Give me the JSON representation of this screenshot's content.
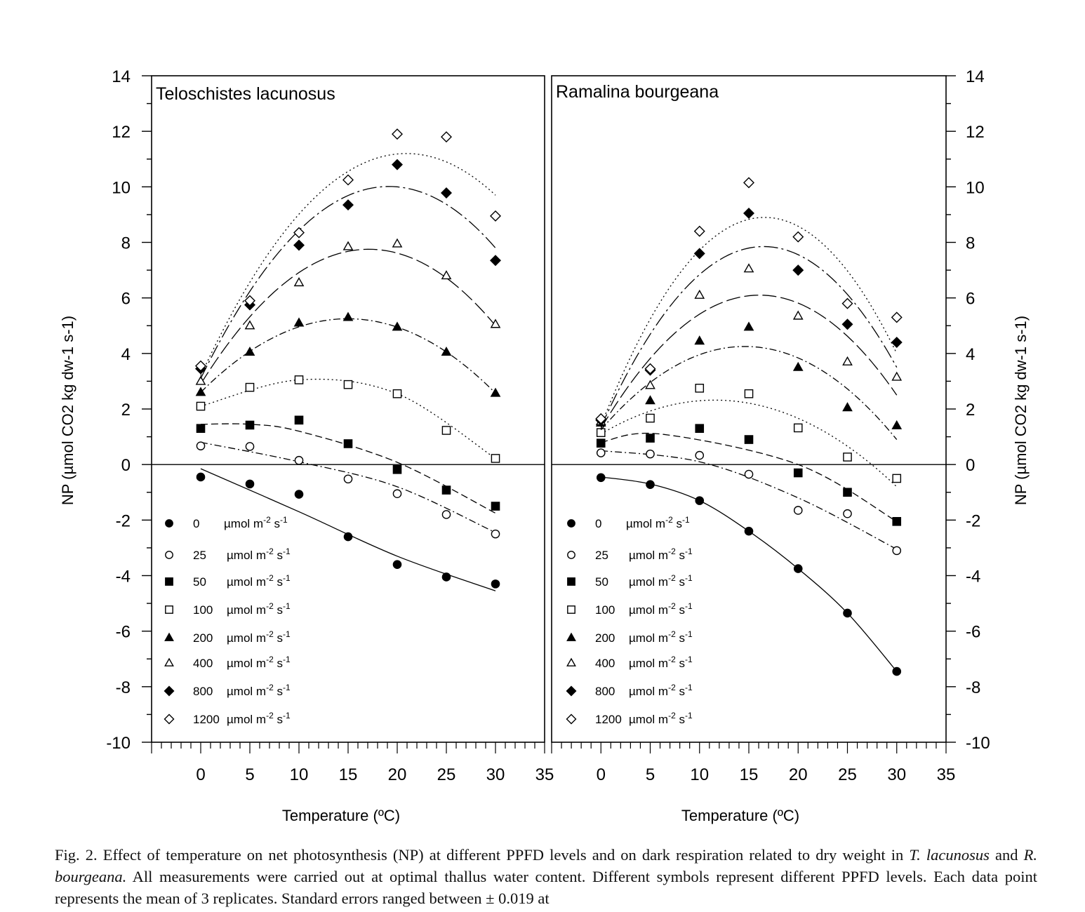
{
  "chart_data": [
    {
      "type": "scatter",
      "title": "Teloschistes lacunosus",
      "xlabel": "Temperature (ºC)",
      "ylabel": "NP (µmol CO2 kg dw-1 s-1)",
      "xlim": [
        -5,
        35
      ],
      "ylim": [
        -10,
        14
      ],
      "x_ticks": [
        "0",
        "5",
        "10",
        "15",
        "20",
        "25",
        "30",
        "35"
      ],
      "y_ticks": [
        "14",
        "12",
        "10",
        "8",
        "6",
        "4",
        "2",
        "0",
        "-2",
        "-4",
        "-6",
        "-8",
        "-10"
      ],
      "legend_position": "bottom-left",
      "series": [
        {
          "name": "0",
          "marker": "filled-circle",
          "line": "solid",
          "x": [
            0,
            5,
            10,
            15,
            20,
            25,
            30
          ],
          "y": [
            -0.45,
            -0.7,
            -1.07,
            -2.6,
            -3.6,
            -4.05,
            -4.3
          ],
          "fit": [
            [
              0,
              -0.15
            ],
            [
              10,
              -1.7
            ],
            [
              20,
              -3.3
            ],
            [
              30,
              -4.55
            ]
          ]
        },
        {
          "name": "25",
          "marker": "open-circle",
          "line": "dashdot",
          "x": [
            0,
            5,
            10,
            15,
            20,
            25,
            30
          ],
          "y": [
            0.67,
            0.65,
            0.15,
            -0.52,
            -1.05,
            -1.8,
            -2.5
          ],
          "fit": [
            [
              0,
              0.8
            ],
            [
              10,
              0.1
            ],
            [
              20,
              -0.8
            ],
            [
              30,
              -2.45
            ]
          ]
        },
        {
          "name": "50",
          "marker": "filled-square",
          "line": "dashed",
          "x": [
            0,
            5,
            10,
            15,
            20,
            25,
            30
          ],
          "y": [
            1.3,
            1.42,
            1.6,
            0.75,
            -0.18,
            -0.92,
            -1.5
          ],
          "fit": [
            [
              0,
              1.45
            ],
            [
              5,
              1.45
            ],
            [
              10,
              1.2
            ],
            [
              20,
              0.08
            ],
            [
              30,
              -1.75
            ]
          ]
        },
        {
          "name": "100",
          "marker": "open-square",
          "line": "dotted",
          "x": [
            0,
            5,
            10,
            15,
            20,
            25,
            30
          ],
          "y": [
            2.1,
            2.78,
            3.05,
            2.88,
            2.55,
            1.23,
            0.22
          ],
          "fit": [
            [
              0,
              2.1
            ],
            [
              10,
              3.05
            ],
            [
              20,
              2.55
            ],
            [
              30,
              0.22
            ]
          ]
        },
        {
          "name": "200",
          "marker": "filled-triangle",
          "line": "dashdot",
          "x": [
            0,
            5,
            10,
            15,
            20,
            25,
            30
          ],
          "y": [
            2.6,
            4.05,
            5.1,
            5.3,
            4.95,
            4.05,
            2.57
          ],
          "fit": [
            [
              0,
              2.6
            ],
            [
              15,
              5.25
            ],
            [
              30,
              2.57
            ]
          ]
        },
        {
          "name": "400",
          "marker": "open-triangle",
          "line": "longdash",
          "x": [
            0,
            5,
            10,
            15,
            20,
            25,
            30
          ],
          "y": [
            3.0,
            5.0,
            6.55,
            7.85,
            7.95,
            6.8,
            5.05
          ],
          "fit": [
            [
              0,
              2.9
            ],
            [
              17.5,
              7.75
            ],
            [
              30,
              5.0
            ]
          ]
        },
        {
          "name": "800",
          "marker": "filled-diamond",
          "line": "longdashdot",
          "x": [
            0,
            5,
            10,
            15,
            20,
            25,
            30
          ],
          "y": [
            3.45,
            5.75,
            7.9,
            9.35,
            10.8,
            9.78,
            7.35
          ],
          "fit": [
            [
              0,
              3.1
            ],
            [
              20,
              10.0
            ],
            [
              30,
              7.8
            ]
          ]
        },
        {
          "name": "1200",
          "marker": "open-diamond",
          "line": "dotted",
          "x": [
            0,
            5,
            10,
            15,
            20,
            25,
            30
          ],
          "y": [
            3.55,
            5.9,
            8.35,
            10.25,
            11.9,
            11.8,
            8.95
          ],
          "fit": [
            [
              0,
              3.2
            ],
            [
              21,
              11.2
            ],
            [
              30,
              9.7
            ]
          ]
        }
      ]
    },
    {
      "type": "scatter",
      "title": "Ramalina bourgeana",
      "xlabel": "Temperature (ºC)",
      "ylabel": "NP (µmol CO2 kg dw-1 s-1)",
      "xlim": [
        -5,
        35
      ],
      "ylim": [
        -10,
        14
      ],
      "x_ticks": [
        "0",
        "5",
        "10",
        "15",
        "20",
        "25",
        "30",
        "35"
      ],
      "y_ticks": [
        "14",
        "12",
        "10",
        "8",
        "6",
        "4",
        "2",
        "0",
        "-2",
        "-4",
        "-6",
        "-8",
        "-10"
      ],
      "legend_position": "bottom-left",
      "series": [
        {
          "name": "0",
          "marker": "filled-circle",
          "line": "solid",
          "x": [
            0,
            5,
            10,
            15,
            20,
            25,
            30
          ],
          "y": [
            -0.47,
            -0.72,
            -1.3,
            -2.4,
            -3.75,
            -5.35,
            -7.45
          ],
          "fit": [
            [
              0,
              -0.45
            ],
            [
              5,
              -0.7
            ],
            [
              10,
              -1.3
            ],
            [
              15,
              -2.4
            ],
            [
              20,
              -3.75
            ],
            [
              25,
              -5.35
            ],
            [
              30,
              -7.45
            ]
          ]
        },
        {
          "name": "25",
          "marker": "open-circle",
          "line": "dashdot",
          "x": [
            0,
            5,
            10,
            15,
            20,
            25,
            30
          ],
          "y": [
            0.42,
            0.38,
            0.33,
            -0.35,
            -1.65,
            -1.77,
            -3.1
          ],
          "fit": [
            [
              0,
              0.5
            ],
            [
              10,
              0.1
            ],
            [
              20,
              -1.2
            ],
            [
              30,
              -3.05
            ]
          ]
        },
        {
          "name": "50",
          "marker": "filled-square",
          "line": "dashed",
          "x": [
            0,
            5,
            10,
            15,
            20,
            25,
            30
          ],
          "y": [
            0.77,
            0.95,
            1.3,
            0.9,
            -0.3,
            -1.0,
            -2.05
          ],
          "fit": [
            [
              0,
              0.8
            ],
            [
              6,
              1.1
            ],
            [
              20,
              0.0
            ],
            [
              30,
              -2.05
            ]
          ]
        },
        {
          "name": "100",
          "marker": "open-square",
          "line": "dotted",
          "x": [
            0,
            5,
            10,
            15,
            20,
            25,
            30
          ],
          "y": [
            1.15,
            1.67,
            2.75,
            2.55,
            1.32,
            0.27,
            -0.5
          ],
          "fit": [
            [
              0,
              1.1
            ],
            [
              13,
              2.3
            ],
            [
              30,
              -0.8
            ]
          ]
        },
        {
          "name": "200",
          "marker": "filled-triangle",
          "line": "dashdot",
          "x": [
            0,
            5,
            10,
            15,
            20,
            25,
            30
          ],
          "y": [
            1.5,
            2.3,
            4.45,
            4.95,
            3.5,
            2.05,
            1.4
          ],
          "fit": [
            [
              0,
              1.25
            ],
            [
              15,
              4.25
            ],
            [
              30,
              0.9
            ]
          ]
        },
        {
          "name": "400",
          "marker": "open-triangle",
          "line": "longdash",
          "x": [
            0,
            5,
            10,
            15,
            20,
            25,
            30
          ],
          "y": [
            1.55,
            2.85,
            6.1,
            7.05,
            5.35,
            3.7,
            3.15
          ],
          "fit": [
            [
              0,
              1.3
            ],
            [
              16,
              6.1
            ],
            [
              30,
              2.5
            ]
          ]
        },
        {
          "name": "800",
          "marker": "filled-diamond",
          "line": "longdashdot",
          "x": [
            0,
            5,
            10,
            15,
            20,
            25,
            30
          ],
          "y": [
            1.6,
            3.4,
            7.6,
            9.05,
            7.0,
            5.05,
            4.4
          ],
          "fit": [
            [
              0,
              1.35
            ],
            [
              16.5,
              7.85
            ],
            [
              30,
              3.5
            ]
          ]
        },
        {
          "name": "1200",
          "marker": "open-diamond",
          "line": "dotted",
          "x": [
            0,
            5,
            10,
            15,
            20,
            25,
            30
          ],
          "y": [
            1.65,
            3.45,
            8.4,
            10.15,
            8.2,
            5.8,
            5.3
          ],
          "fit": [
            [
              0,
              1.4
            ],
            [
              16.5,
              8.9
            ],
            [
              30,
              4.0
            ]
          ]
        }
      ]
    }
  ],
  "legend": {
    "unit": "µmol m",
    "exp1": "-2",
    "unit2": " s",
    "exp2": "-1",
    "labels": [
      "0",
      "25",
      "50",
      "100",
      "200",
      "400",
      "800",
      "1200"
    ]
  },
  "caption": {
    "lead": "Fig. 2.  Effect of temperature on net photosynthesis (NP) at different PPFD levels and on dark respiration related to dry weight in ",
    "species1": "T. lacunosus",
    "mid": " and ",
    "species2": "R. bourgeana.",
    "rest": " All measurements were carried out at optimal thallus water content. Different symbols represent different PPFD levels. Each data point represents the mean of 3 replicates. Standard errors ranged between ± 0.019 at"
  }
}
